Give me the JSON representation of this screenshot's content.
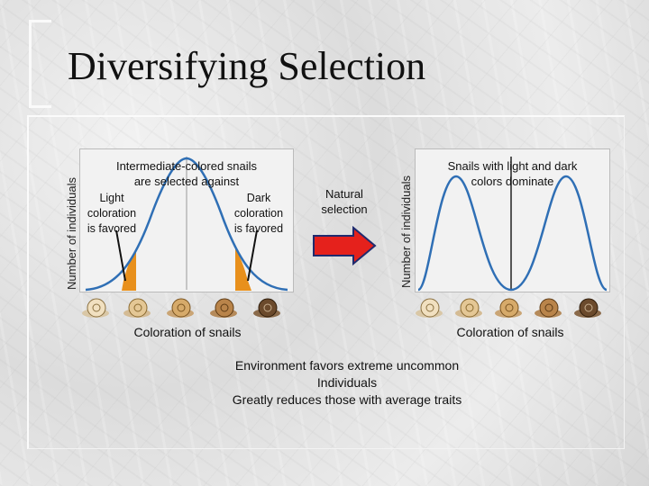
{
  "slide": {
    "title": "Diversifying Selection"
  },
  "left_chart": {
    "ylabel": "Number of individuals",
    "note_line1": "Intermediate-colored snails",
    "note_line2": "are selected against",
    "light_line1": "Light",
    "light_line2": "coloration",
    "light_line3": "is favored",
    "dark_line1": "Dark",
    "dark_line2": "coloration",
    "dark_line3": "is favored",
    "xlabel": "Coloration of snails"
  },
  "arrow": {
    "label_line1": "Natural",
    "label_line2": "selection"
  },
  "right_chart": {
    "ylabel": "Number of individuals",
    "note_line1": "Snails with light and dark",
    "note_line2": "colors dominate",
    "xlabel": "Coloration of snails"
  },
  "conclusion": {
    "line1": "Environment favors extreme uncommon",
    "line2": "Individuals",
    "line3": "Greatly reduces those with average traits"
  },
  "colors": {
    "curve": "#2f6fb5",
    "tail_fill": "#e8901c",
    "arrow_red": "#e5211c",
    "arrow_outline": "#1f2b6e"
  },
  "icons": [
    "snail-icon"
  ]
}
